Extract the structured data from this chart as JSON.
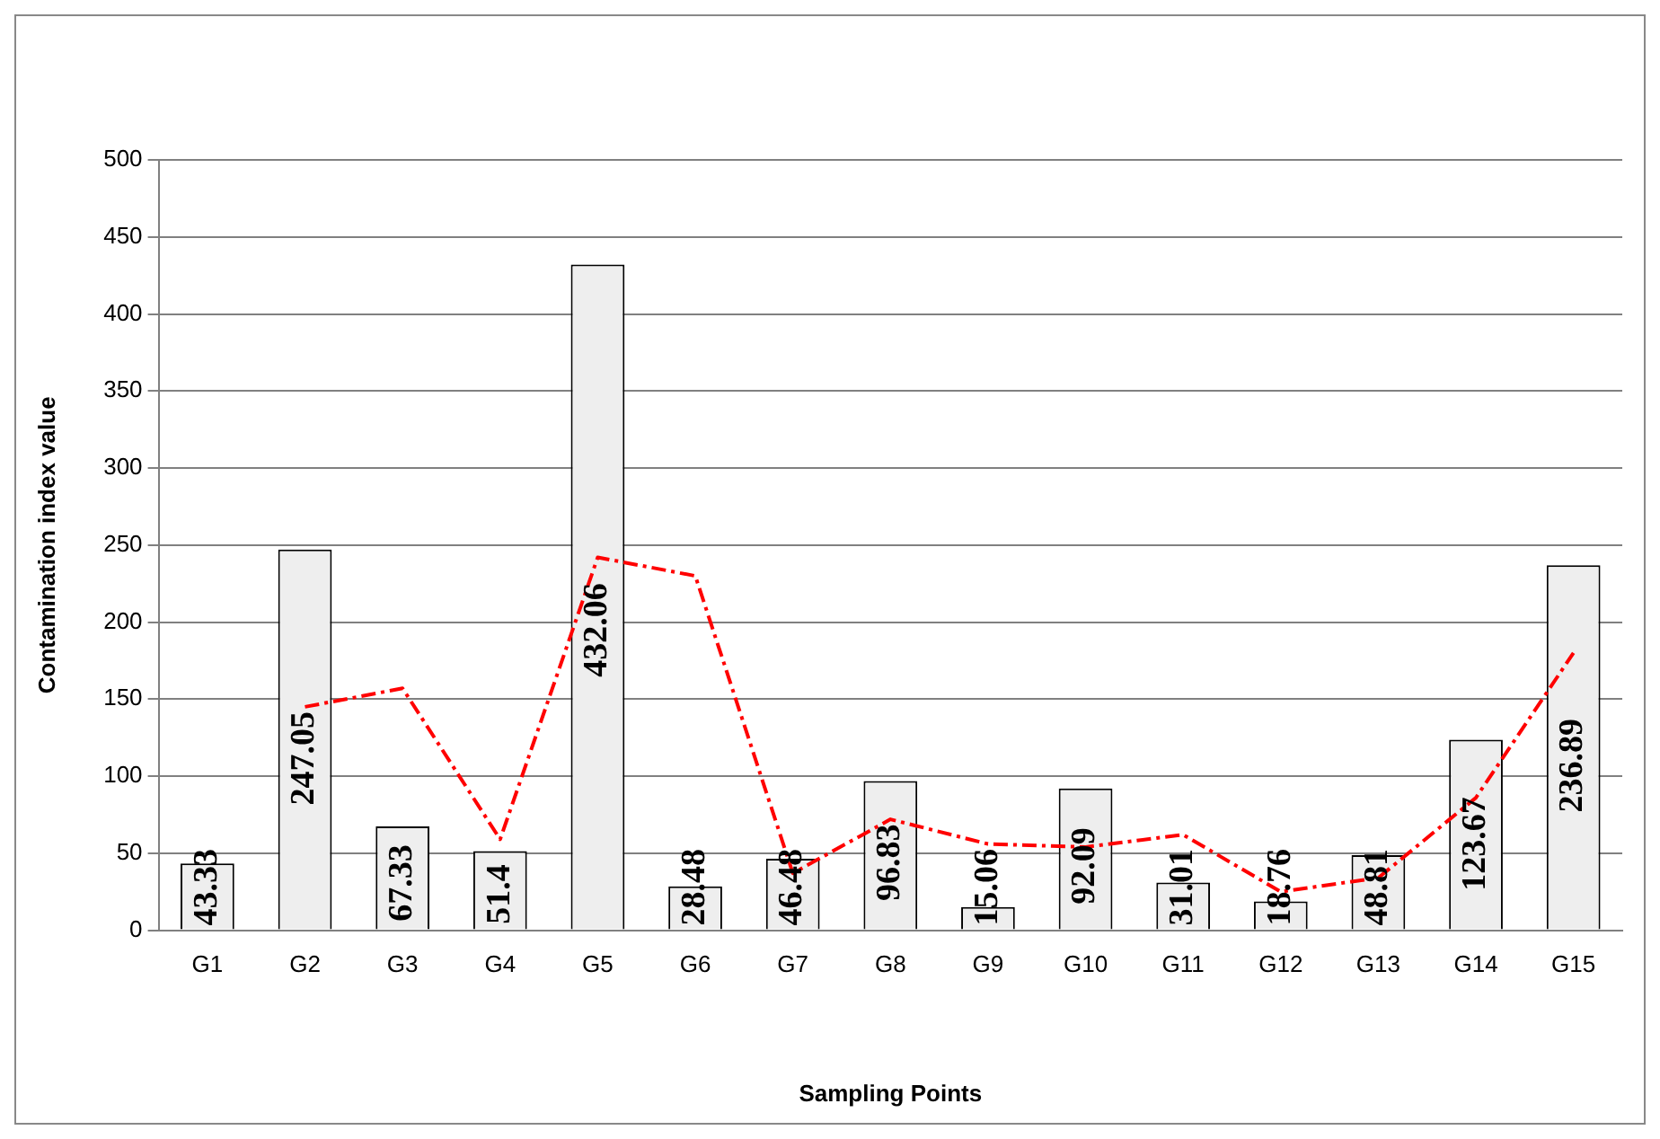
{
  "chart_data": {
    "type": "bar",
    "xlabel": "Sampling Points",
    "ylabel": "Contamination index value",
    "categories": [
      "G1",
      "G2",
      "G3",
      "G4",
      "G5",
      "G6",
      "G7",
      "G8",
      "G9",
      "G10",
      "G11",
      "G12",
      "G13",
      "G14",
      "G15"
    ],
    "series": [
      {
        "color": "#eeeeee",
        "values": [
          43.33,
          247.05,
          67.33,
          51.4,
          432.06,
          28.48,
          46.48,
          96.83,
          15.06,
          92.09,
          31.01,
          18.76,
          48.81,
          123.67,
          236.89
        ],
        "value_labels": [
          "43.33",
          "247.05",
          "67.33",
          "51.4",
          "432.06",
          "28.48",
          "46.48",
          "96.83",
          "15.06",
          "92.09",
          "31.01",
          "18.76",
          "48.81",
          "123.67",
          "236.89"
        ]
      },
      {
        "type": "line",
        "color": "#ff0000",
        "line_style": "dashed",
        "marker": "none",
        "x": [
          "G2",
          "G3",
          "G4",
          "G5",
          "G6",
          "G7",
          "G8",
          "G9",
          "G10",
          "G11",
          "G12",
          "G13",
          "G14",
          "G15"
        ],
        "values": [
          145,
          157,
          59,
          242,
          230,
          37,
          72,
          56,
          54,
          62,
          25,
          34,
          86,
          180
        ]
      }
    ],
    "ylim": [
      0,
      500
    ],
    "yticks": [
      0,
      50,
      100,
      150,
      200,
      250,
      300,
      350,
      400,
      450,
      500
    ],
    "grid": "y",
    "legend": false
  }
}
